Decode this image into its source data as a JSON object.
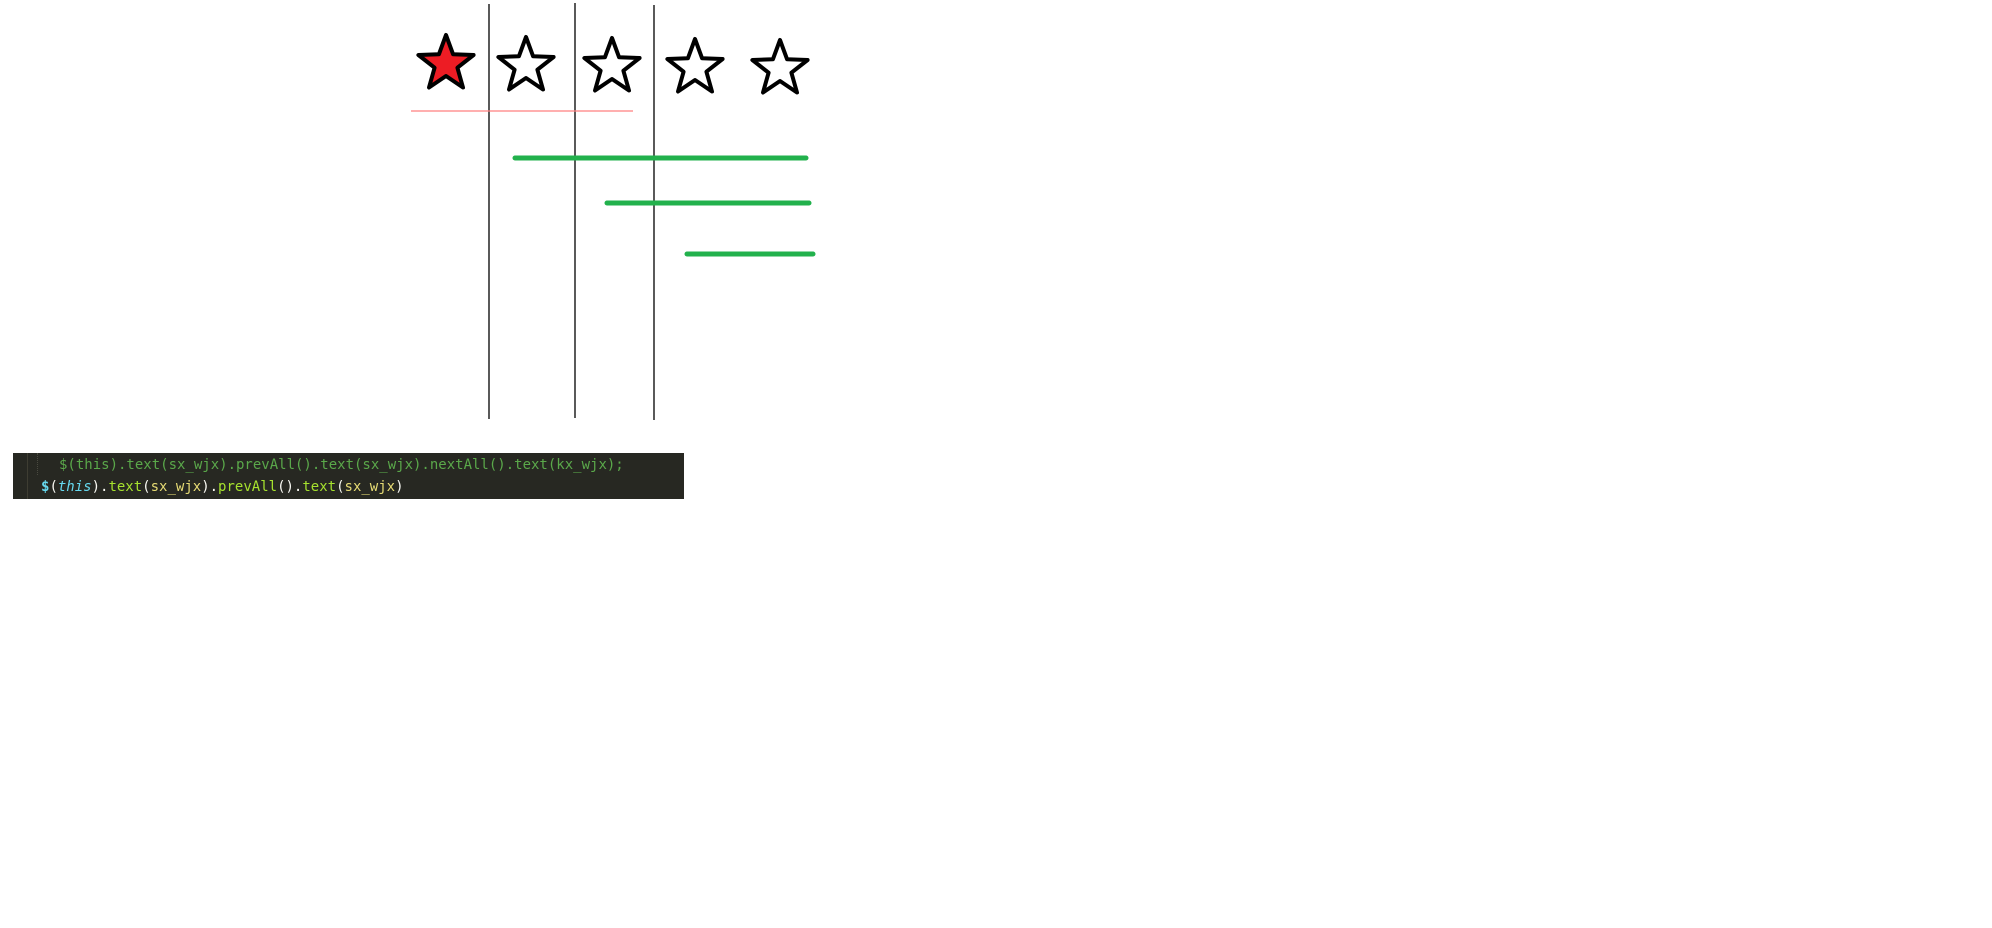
{
  "rating": {
    "value": 1,
    "max": 5,
    "filled_color": "#ed1c24",
    "empty_color": "#ffffff",
    "outline_color": "#000000"
  },
  "annotation_colors": {
    "divider": "#000000",
    "underline": "#ff7f7f",
    "range": "#22b14c"
  },
  "code": {
    "line1": "$(this).text(sx_wjx).prevAll().text(sx_wjx).nextAll().text(kx_wjx);",
    "line2": {
      "dollar": "$",
      "open1": "(",
      "this": "this",
      "close1": ").",
      "text_method": "text",
      "open2": "(",
      "arg1": "sx_wjx",
      "close2": ").",
      "prevall_method": "prevAll",
      "parens": "().",
      "text_method2": "text",
      "open3": "(",
      "arg2": "sx_wjx",
      "close3": ")"
    }
  }
}
